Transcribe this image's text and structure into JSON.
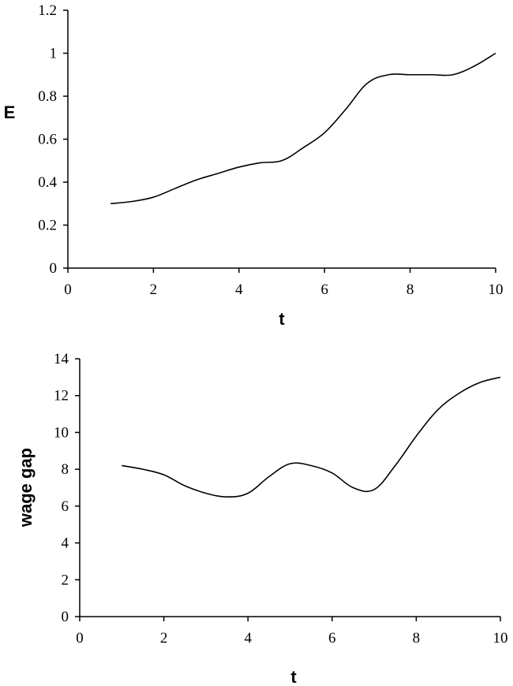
{
  "chart_data": [
    {
      "type": "line",
      "title": "",
      "xlabel": "t",
      "ylabel": "E",
      "xlim": [
        0,
        10
      ],
      "ylim": [
        0,
        1.2
      ],
      "xticks": [
        0,
        2,
        4,
        6,
        8,
        10
      ],
      "yticks": [
        0,
        0.2,
        0.4,
        0.6,
        0.8,
        1,
        1.2
      ],
      "xtick_labels": [
        "0",
        "2",
        "4",
        "6",
        "8",
        "10"
      ],
      "ytick_labels": [
        "0",
        "0.2",
        "0.4",
        "0.6",
        "0.8",
        "1",
        "1.2"
      ],
      "grid": false,
      "series": [
        {
          "x": [
            1,
            1.5,
            2,
            2.5,
            3,
            3.5,
            4,
            4.5,
            5,
            5.5,
            6,
            6.5,
            7,
            7.5,
            8,
            8.5,
            9,
            9.5,
            10
          ],
          "y": [
            0.3,
            0.31,
            0.33,
            0.37,
            0.41,
            0.44,
            0.47,
            0.49,
            0.5,
            0.56,
            0.63,
            0.74,
            0.86,
            0.9,
            0.9,
            0.9,
            0.9,
            0.94,
            1.0
          ]
        }
      ]
    },
    {
      "type": "line",
      "title": "",
      "xlabel": "t",
      "ylabel": "wage gap",
      "xlim": [
        0,
        10
      ],
      "ylim": [
        0,
        14
      ],
      "xticks": [
        0,
        2,
        4,
        6,
        8,
        10
      ],
      "yticks": [
        0,
        2,
        4,
        6,
        8,
        10,
        12,
        14
      ],
      "xtick_labels": [
        "0",
        "2",
        "4",
        "6",
        "8",
        "10"
      ],
      "ytick_labels": [
        "0",
        "2",
        "4",
        "6",
        "8",
        "10",
        "12",
        "14"
      ],
      "grid": false,
      "series": [
        {
          "x": [
            1,
            1.5,
            2,
            2.5,
            3,
            3.5,
            4,
            4.5,
            5,
            5.5,
            6,
            6.5,
            7,
            7.5,
            8,
            8.5,
            9,
            9.5,
            10
          ],
          "y": [
            8.2,
            8.0,
            7.7,
            7.1,
            6.7,
            6.5,
            6.7,
            7.6,
            8.3,
            8.2,
            7.8,
            7.0,
            6.9,
            8.2,
            9.8,
            11.2,
            12.1,
            12.7,
            13.0
          ]
        }
      ]
    }
  ]
}
